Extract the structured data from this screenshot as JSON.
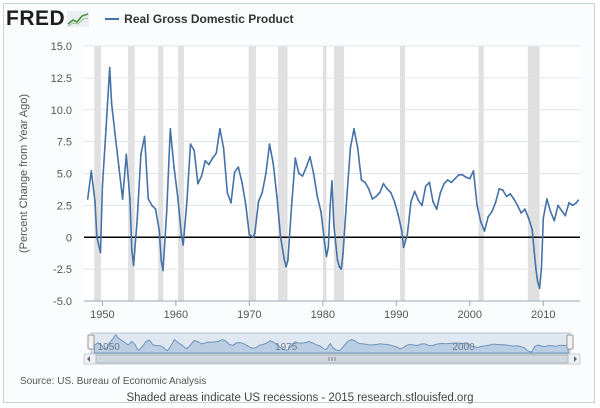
{
  "header": {
    "logo_text": "FRED",
    "logo_icon": "line-chart-logo-icon",
    "legend_label": "Real Gross Domestic Product"
  },
  "colors": {
    "series": "#4572a7",
    "recession": "#e0e0e0",
    "zero_line": "#000000",
    "grid": "#dfe4ea"
  },
  "chart_data": {
    "type": "line",
    "title": "",
    "xlabel": "",
    "ylabel": "(Percent Change from Year Ago)",
    "xlim": [
      1947.5,
      2015.0
    ],
    "ylim": [
      -5.0,
      15.0
    ],
    "yticks": [
      -5.0,
      -2.5,
      0,
      2.5,
      5.0,
      7.5,
      10.0,
      12.5,
      15.0
    ],
    "yticklabels": [
      "-5.0",
      "-2.5",
      "0",
      "2.5",
      "5.0",
      "7.5",
      "10.0",
      "12.5",
      "15.0"
    ],
    "xticks": [
      1950,
      1960,
      1970,
      1980,
      1990,
      2000,
      2010
    ],
    "xticklabels": [
      "1950",
      "1960",
      "1970",
      "1980",
      "1990",
      "2000",
      "2010"
    ],
    "grid": true,
    "legend": "top-left",
    "series": [
      {
        "name": "Real Gross Domestic Product",
        "x": [
          1948.0,
          1948.5,
          1949.0,
          1949.25,
          1949.5,
          1949.75,
          1950.0,
          1950.5,
          1951.0,
          1951.25,
          1951.75,
          1952.25,
          1952.75,
          1953.25,
          1953.75,
          1954.0,
          1954.25,
          1954.75,
          1955.25,
          1955.75,
          1956.25,
          1956.75,
          1957.25,
          1957.75,
          1958.0,
          1958.25,
          1958.75,
          1959.25,
          1959.75,
          1960.25,
          1960.75,
          1961.0,
          1961.5,
          1962.0,
          1962.5,
          1963.0,
          1963.5,
          1964.0,
          1964.5,
          1965.0,
          1965.5,
          1966.0,
          1966.5,
          1967.0,
          1967.5,
          1968.0,
          1968.5,
          1969.0,
          1969.5,
          1970.0,
          1970.5,
          1970.75,
          1971.25,
          1971.75,
          1972.25,
          1972.75,
          1973.25,
          1973.75,
          1974.25,
          1974.75,
          1975.0,
          1975.25,
          1975.75,
          1976.25,
          1976.75,
          1977.25,
          1977.75,
          1978.25,
          1978.75,
          1979.25,
          1979.75,
          1980.25,
          1980.5,
          1980.75,
          1981.0,
          1981.25,
          1981.5,
          1982.0,
          1982.25,
          1982.5,
          1982.75,
          1983.25,
          1983.75,
          1984.25,
          1984.75,
          1985.25,
          1985.75,
          1986.25,
          1986.75,
          1987.25,
          1987.75,
          1988.25,
          1988.75,
          1989.25,
          1989.75,
          1990.25,
          1990.75,
          1991.0,
          1991.5,
          1992.0,
          1992.5,
          1993.0,
          1993.5,
          1994.0,
          1994.5,
          1995.0,
          1995.5,
          1996.0,
          1996.5,
          1997.0,
          1997.5,
          1998.0,
          1998.5,
          1999.0,
          1999.5,
          2000.0,
          2000.5,
          2001.0,
          2001.5,
          2002.0,
          2002.5,
          2003.0,
          2003.5,
          2004.0,
          2004.5,
          2005.0,
          2005.5,
          2006.0,
          2006.5,
          2007.0,
          2007.5,
          2008.0,
          2008.5,
          2008.75,
          2009.0,
          2009.25,
          2009.5,
          2009.75,
          2010.0,
          2010.5,
          2011.0,
          2011.5,
          2012.0,
          2012.5,
          2013.0,
          2013.5,
          2014.0,
          2014.5,
          2014.75
        ],
        "values": [
          3.0,
          5.2,
          2.8,
          0.0,
          -0.6,
          -1.2,
          4.0,
          8.5,
          13.3,
          10.5,
          8.0,
          5.5,
          3.0,
          6.5,
          3.0,
          -1.0,
          -2.2,
          1.5,
          6.5,
          7.9,
          3.0,
          2.5,
          2.2,
          0.5,
          -1.8,
          -2.6,
          2.0,
          8.5,
          5.5,
          3.2,
          0.2,
          -0.6,
          2.8,
          7.3,
          6.8,
          4.2,
          4.8,
          6.0,
          5.7,
          6.2,
          6.6,
          8.5,
          7.0,
          3.5,
          2.7,
          5.1,
          5.5,
          4.3,
          2.6,
          0.2,
          0.0,
          0.3,
          2.8,
          3.5,
          5.0,
          7.3,
          5.8,
          3.2,
          0.0,
          -1.7,
          -2.3,
          -1.8,
          2.5,
          6.2,
          5.0,
          4.8,
          5.5,
          6.3,
          5.0,
          3.2,
          2.0,
          -0.5,
          -1.5,
          -0.8,
          2.5,
          4.4,
          1.0,
          -1.8,
          -2.3,
          -2.5,
          -1.3,
          3.0,
          7.0,
          8.5,
          7.0,
          4.5,
          4.3,
          3.8,
          3.0,
          3.2,
          3.5,
          4.2,
          3.8,
          3.5,
          2.8,
          1.8,
          0.5,
          -0.8,
          0.2,
          2.8,
          3.6,
          2.9,
          2.5,
          4.0,
          4.3,
          2.8,
          2.2,
          3.5,
          4.2,
          4.5,
          4.3,
          4.6,
          4.9,
          4.9,
          4.7,
          4.6,
          5.2,
          2.5,
          1.2,
          0.5,
          1.6,
          2.0,
          2.7,
          3.8,
          3.7,
          3.2,
          3.4,
          3.0,
          2.5,
          1.9,
          2.2,
          1.5,
          0.6,
          -1.0,
          -2.5,
          -3.5,
          -4.0,
          -2.5,
          1.5,
          3.0,
          2.0,
          1.3,
          2.5,
          2.1,
          1.7,
          2.7,
          2.5,
          2.7,
          2.9
        ]
      }
    ],
    "recessions": [
      [
        1948.9,
        1949.8
      ],
      [
        1953.5,
        1954.4
      ],
      [
        1957.6,
        1958.3
      ],
      [
        1960.3,
        1961.1
      ],
      [
        1969.9,
        1970.9
      ],
      [
        1973.9,
        1975.2
      ],
      [
        1980.0,
        1980.5
      ],
      [
        1981.5,
        1982.9
      ],
      [
        1990.5,
        1991.2
      ],
      [
        2001.2,
        2001.9
      ],
      [
        2007.9,
        2009.5
      ]
    ],
    "navigator": {
      "xticklabels": [
        "1950",
        "1975",
        "2000"
      ],
      "xticks": [
        1950,
        1975,
        2000
      ]
    }
  },
  "footer": {
    "source": "Source: US. Bureau of Economic Analysis",
    "note": "Shaded areas indicate US recessions - 2015 research.stlouisfed.org"
  }
}
